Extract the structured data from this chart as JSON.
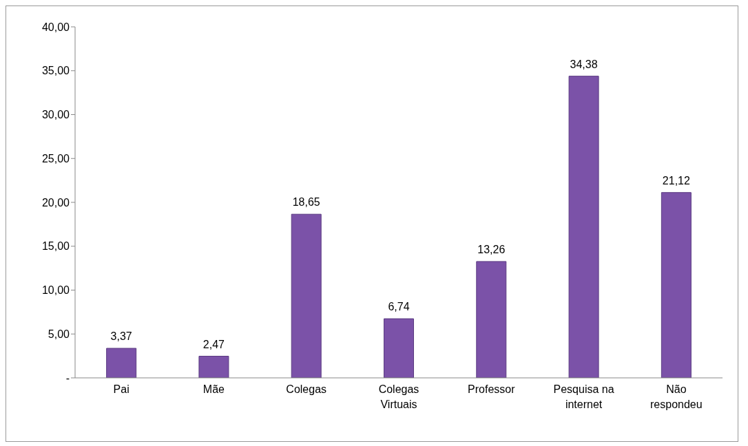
{
  "chart_data": {
    "type": "bar",
    "categories": [
      "Pai",
      "Mãe",
      "Colegas",
      "Colegas Virtuais",
      "Professor",
      "Pesquisa na internet",
      "Não respondeu"
    ],
    "values": [
      3.37,
      2.47,
      18.65,
      6.74,
      13.26,
      34.38,
      21.12
    ],
    "color": "#7b52a8",
    "ylim": [
      0,
      40
    ],
    "yticks": [
      {
        "value": 0,
        "label": "-"
      },
      {
        "value": 5,
        "label": "5,00"
      },
      {
        "value": 10,
        "label": "10,00"
      },
      {
        "value": 15,
        "label": "15,00"
      },
      {
        "value": 20,
        "label": "20,00"
      },
      {
        "value": 25,
        "label": "25,00"
      },
      {
        "value": 30,
        "label": "30,00"
      },
      {
        "value": 35,
        "label": "35,00"
      },
      {
        "value": 40,
        "label": "40,00"
      }
    ],
    "grid": false,
    "legend": false,
    "value_labels": [
      "3,37",
      "2,47",
      "18,65",
      "6,74",
      "13,26",
      "34,38",
      "21,12"
    ]
  }
}
